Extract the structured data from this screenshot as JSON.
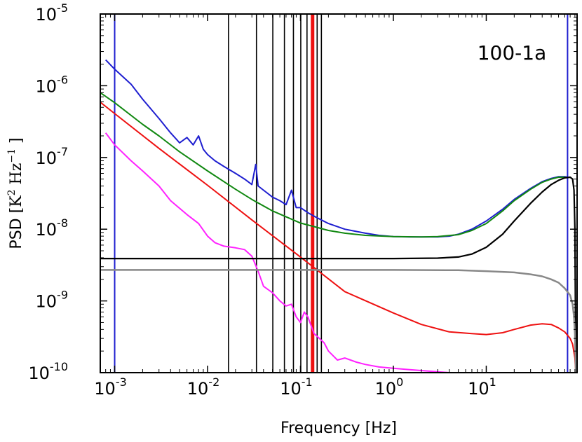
{
  "chart_data": {
    "type": "line",
    "panel_label": "100-1a",
    "xlabel": "Frequency [Hz]",
    "ylabel_prefix": "PSD",
    "ylabel_units": {
      "base1": "K",
      "exp1": "2",
      "base2": "Hz",
      "exp2": "−1"
    },
    "x_scale": "log",
    "y_scale": "log",
    "xlim": [
      0.0007,
      95
    ],
    "ylim": [
      1e-10,
      1e-05
    ],
    "x_ticks": [
      {
        "value": 0.001,
        "base": "10",
        "exp": "-3"
      },
      {
        "value": 0.01,
        "base": "10",
        "exp": "-2"
      },
      {
        "value": 0.1,
        "base": "10",
        "exp": "-1"
      },
      {
        "value": 1,
        "base": "10",
        "exp": "0"
      },
      {
        "value": 10,
        "base": "10",
        "exp": "1"
      }
    ],
    "y_ticks": [
      {
        "value": 1e-10,
        "base": "10",
        "exp": "-10"
      },
      {
        "value": 1e-09,
        "base": "10",
        "exp": "-9"
      },
      {
        "value": 1e-08,
        "base": "10",
        "exp": "-8"
      },
      {
        "value": 1e-07,
        "base": "10",
        "exp": "-7"
      },
      {
        "value": 1e-06,
        "base": "10",
        "exp": "-6"
      },
      {
        "value": 1e-05,
        "base": "10",
        "exp": "-5"
      }
    ],
    "grid": false,
    "legend": "none",
    "vertical_lines": [
      {
        "x": 0.001,
        "color": "#1f1fd0",
        "width": 2
      },
      {
        "x": 75,
        "color": "#1f1fd0",
        "width": 2
      },
      {
        "x": 0.0168,
        "color": "#000000",
        "width": 1.6
      },
      {
        "x": 0.0336,
        "color": "#000000",
        "width": 1.6
      },
      {
        "x": 0.0504,
        "color": "#000000",
        "width": 1.6
      },
      {
        "x": 0.0672,
        "color": "#000000",
        "width": 1.6
      },
      {
        "x": 0.084,
        "color": "#000000",
        "width": 1.6
      },
      {
        "x": 0.1008,
        "color": "#000000",
        "width": 1.6
      },
      {
        "x": 0.1176,
        "color": "#000000",
        "width": 1.6
      },
      {
        "x": 0.1512,
        "color": "#000000",
        "width": 1.6
      },
      {
        "x": 0.168,
        "color": "#000000",
        "width": 1.6
      },
      {
        "x": 0.135,
        "color": "#ee1111",
        "width": 5
      }
    ],
    "series": [
      {
        "color": "#ff22ff",
        "width": 2,
        "x": [
          0.0008,
          0.001,
          0.0015,
          0.002,
          0.003,
          0.004,
          0.006,
          0.008,
          0.01,
          0.012,
          0.015,
          0.02,
          0.025,
          0.03,
          0.035,
          0.04,
          0.05,
          0.06,
          0.07,
          0.08,
          0.09,
          0.1,
          0.11,
          0.12,
          0.14,
          0.16,
          0.18,
          0.2,
          0.25,
          0.3,
          0.4,
          0.5,
          0.7,
          1.0,
          1.5,
          2.0,
          3.0,
          4.0
        ],
        "y": [
          2.2e-07,
          1.5e-07,
          9e-08,
          6.5e-08,
          4e-08,
          2.5e-08,
          1.6e-08,
          1.2e-08,
          8e-09,
          6.5e-09,
          5.8e-09,
          5.5e-09,
          5.2e-09,
          4.2e-09,
          2.6e-09,
          1.6e-09,
          1.3e-09,
          1e-09,
          8.5e-10,
          9e-10,
          6e-10,
          5e-10,
          7e-10,
          6e-10,
          3.5e-10,
          3e-10,
          2.6e-10,
          2e-10,
          1.5e-10,
          1.6e-10,
          1.4e-10,
          1.3e-10,
          1.2e-10,
          1.15e-10,
          1.1e-10,
          1.07e-10,
          1.03e-10,
          1e-10
        ]
      },
      {
        "color": "#ee1111",
        "width": 2,
        "x": [
          0.0007,
          0.001,
          0.003,
          0.01,
          0.03,
          0.1,
          0.3,
          1.0,
          2.0,
          4.0,
          7.0,
          10.0,
          15.0,
          20.0,
          30.0,
          40.0,
          50.0,
          60.0,
          70.0,
          80.0,
          85.0,
          90.0,
          92.0
        ],
        "y": [
          5.9e-07,
          4.1e-07,
          1.34e-07,
          4.1e-08,
          1.35e-08,
          4.1e-09,
          1.35e-09,
          6.8e-10,
          4.7e-10,
          3.7e-10,
          3.5e-10,
          3.4e-10,
          3.6e-10,
          4e-10,
          4.6e-10,
          4.8e-10,
          4.7e-10,
          4.2e-10,
          3.7e-10,
          3e-10,
          2.5e-10,
          1.6e-10,
          1e-10
        ]
      },
      {
        "color": "#1f1fd0",
        "width": 2,
        "x": [
          0.0008,
          0.001,
          0.0015,
          0.002,
          0.003,
          0.004,
          0.005,
          0.006,
          0.007,
          0.008,
          0.009,
          0.01,
          0.012,
          0.015,
          0.02,
          0.025,
          0.03,
          0.033,
          0.035,
          0.04,
          0.05,
          0.06,
          0.07,
          0.08,
          0.09,
          0.1,
          0.12,
          0.15,
          0.2,
          0.3,
          0.5,
          0.7,
          1.0,
          1.5,
          2.0,
          3.0,
          4.0,
          5.0,
          7.0,
          10.0,
          15.0,
          20.0,
          30.0,
          40.0,
          50.0,
          60.0,
          70.0,
          75.0
        ],
        "y": [
          2.3e-06,
          1.7e-06,
          1.05e-06,
          6.5e-07,
          3.5e-07,
          2.2e-07,
          1.6e-07,
          1.9e-07,
          1.5e-07,
          2e-07,
          1.3e-07,
          1.1e-07,
          9e-08,
          7.5e-08,
          6e-08,
          5e-08,
          4.2e-08,
          8e-08,
          4e-08,
          3.5e-08,
          2.8e-08,
          2.5e-08,
          2.2e-08,
          3.5e-08,
          2e-08,
          2e-08,
          1.7e-08,
          1.45e-08,
          1.2e-08,
          1e-08,
          8.8e-09,
          8.2e-09,
          7.9e-09,
          7.8e-09,
          7.8e-09,
          7.8e-09,
          8e-09,
          8.5e-09,
          1e-08,
          1.3e-08,
          1.9e-08,
          2.6e-08,
          3.7e-08,
          4.6e-08,
          5.1e-08,
          5.4e-08,
          5.4e-08,
          5.3e-08
        ]
      },
      {
        "color": "#118811",
        "width": 2,
        "x": [
          0.0007,
          0.001,
          0.002,
          0.003,
          0.005,
          0.01,
          0.02,
          0.03,
          0.05,
          0.1,
          0.2,
          0.3,
          0.5,
          1.0,
          2.0,
          3.0,
          5.0,
          7.0,
          10.0,
          15.0,
          20.0,
          30.0,
          40.0,
          50.0,
          60.0,
          70.0,
          75.0
        ],
        "y": [
          8e-07,
          5.8e-07,
          2.9e-07,
          2e-07,
          1.2e-07,
          6.5e-08,
          3.6e-08,
          2.6e-08,
          1.8e-08,
          1.22e-08,
          9.6e-09,
          8.8e-09,
          8.2e-09,
          7.9e-09,
          7.8e-09,
          7.9e-09,
          8.4e-09,
          9.6e-09,
          1.2e-08,
          1.8e-08,
          2.5e-08,
          3.6e-08,
          4.5e-08,
          5e-08,
          5.3e-08,
          5.3e-08,
          5.2e-08
        ]
      },
      {
        "color": "#000000",
        "width": 2.2,
        "x": [
          0.0007,
          1.0,
          3.0,
          5.0,
          7.0,
          10.0,
          15.0,
          20.0,
          30.0,
          40.0,
          50.0,
          60.0,
          70.0,
          80.0,
          85.0,
          88.0,
          90.0,
          92.0
        ],
        "y": [
          3.9e-09,
          3.9e-09,
          3.95e-09,
          4.1e-09,
          4.5e-09,
          5.6e-09,
          8.5e-09,
          1.3e-08,
          2.3e-08,
          3.3e-08,
          4.2e-08,
          4.8e-08,
          5.2e-08,
          5.3e-08,
          5e-08,
          3.5e-08,
          1e-08,
          1e-10
        ]
      },
      {
        "color": "#888888",
        "width": 2.5,
        "x": [
          0.0007,
          1.0,
          5.0,
          10.0,
          20.0,
          30.0,
          40.0,
          50.0,
          60.0,
          70.0,
          80.0,
          85.0,
          88.0,
          90.0,
          92.0
        ],
        "y": [
          2.7e-09,
          2.7e-09,
          2.68e-09,
          2.6e-09,
          2.5e-09,
          2.35e-09,
          2.2e-09,
          2e-09,
          1.8e-09,
          1.5e-09,
          1.2e-09,
          9e-10,
          6e-10,
          3.5e-10,
          1e-10
        ]
      }
    ]
  }
}
